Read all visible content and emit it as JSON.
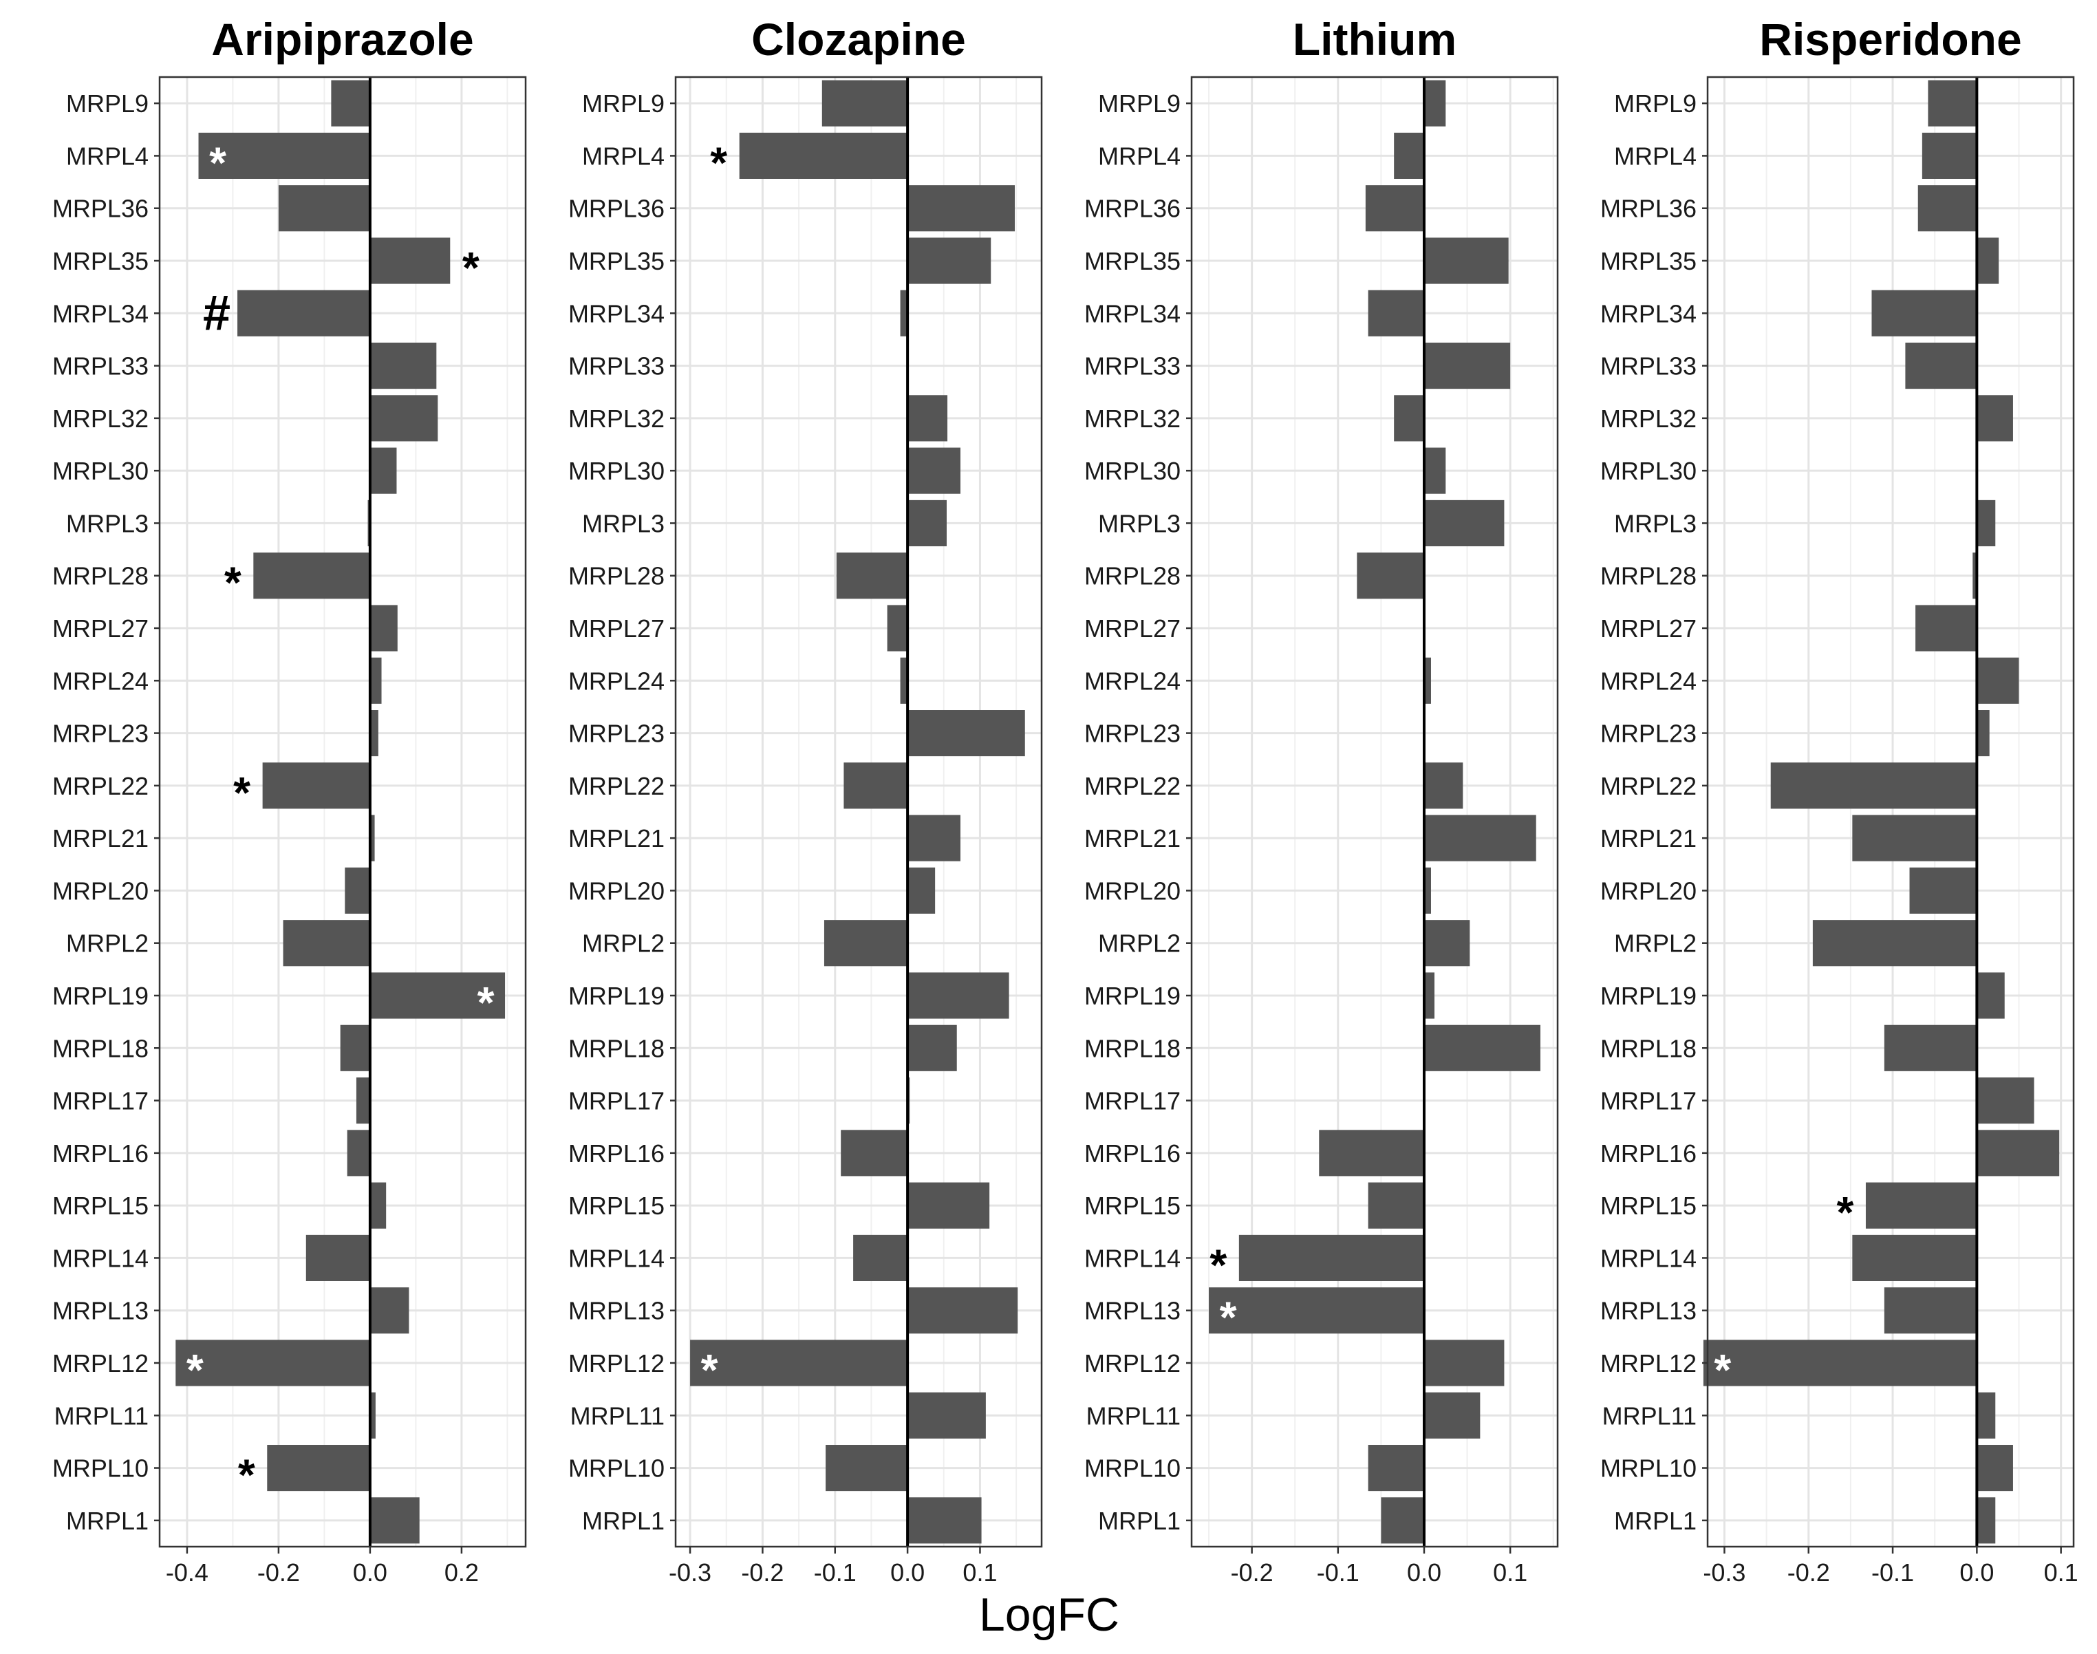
{
  "chart_data": {
    "type": "bar",
    "orientation": "horizontal",
    "xlabel": "LogFC",
    "categories": [
      "MRPL9",
      "MRPL4",
      "MRPL36",
      "MRPL35",
      "MRPL34",
      "MRPL33",
      "MRPL32",
      "MRPL30",
      "MRPL3",
      "MRPL28",
      "MRPL27",
      "MRPL24",
      "MRPL23",
      "MRPL22",
      "MRPL21",
      "MRPL20",
      "MRPL2",
      "MRPL19",
      "MRPL18",
      "MRPL17",
      "MRPL16",
      "MRPL15",
      "MRPL14",
      "MRPL13",
      "MRPL12",
      "MRPL11",
      "MRPL10",
      "MRPL1"
    ],
    "panels": [
      {
        "title": "Aripiprazole",
        "xlim": [
          -0.46,
          0.34
        ],
        "ticks": [
          -0.4,
          -0.2,
          0.0,
          0.2
        ],
        "tick_labels": [
          "-0.4",
          "-0.2",
          "0.0",
          "0.2"
        ],
        "values": [
          -0.085,
          -0.375,
          -0.2,
          0.175,
          -0.29,
          0.145,
          0.148,
          0.058,
          -0.005,
          -0.255,
          0.06,
          0.025,
          0.018,
          -0.235,
          0.01,
          -0.055,
          -0.19,
          0.295,
          -0.065,
          -0.03,
          -0.05,
          0.035,
          -0.14,
          0.085,
          -0.425,
          0.012,
          -0.225,
          0.108
        ],
        "marks": [
          {
            "category": "MRPL4",
            "symbol": "*",
            "color": "#ffffff",
            "placement": "inside"
          },
          {
            "category": "MRPL35",
            "symbol": "*",
            "color": "#000000",
            "placement": "outside"
          },
          {
            "category": "MRPL34",
            "symbol": "#",
            "color": "#000000",
            "placement": "outside"
          },
          {
            "category": "MRPL28",
            "symbol": "*",
            "color": "#000000",
            "placement": "outside"
          },
          {
            "category": "MRPL22",
            "symbol": "*",
            "color": "#000000",
            "placement": "outside"
          },
          {
            "category": "MRPL19",
            "symbol": "*",
            "color": "#ffffff",
            "placement": "inside"
          },
          {
            "category": "MRPL12",
            "symbol": "*",
            "color": "#ffffff",
            "placement": "inside"
          },
          {
            "category": "MRPL10",
            "symbol": "*",
            "color": "#000000",
            "placement": "outside"
          }
        ]
      },
      {
        "title": "Clozapine",
        "xlim": [
          -0.32,
          0.185
        ],
        "ticks": [
          -0.3,
          -0.2,
          -0.1,
          0.0,
          0.1
        ],
        "tick_labels": [
          "-0.3",
          "-0.2",
          "-0.1",
          "0.0",
          "0.1"
        ],
        "values": [
          -0.118,
          -0.232,
          0.148,
          0.115,
          -0.01,
          0.0,
          0.055,
          0.073,
          0.054,
          -0.098,
          -0.028,
          -0.01,
          0.162,
          -0.088,
          0.073,
          0.038,
          -0.115,
          0.14,
          0.068,
          0.003,
          -0.092,
          0.113,
          -0.075,
          0.152,
          -0.3,
          0.108,
          -0.113,
          0.102
        ],
        "marks": [
          {
            "category": "MRPL4",
            "symbol": "*",
            "color": "#000000",
            "placement": "outside"
          },
          {
            "category": "MRPL12",
            "symbol": "*",
            "color": "#ffffff",
            "placement": "inside"
          }
        ]
      },
      {
        "title": "Lithium",
        "xlim": [
          -0.27,
          0.155
        ],
        "ticks": [
          -0.2,
          -0.1,
          0.0,
          0.1
        ],
        "tick_labels": [
          "-0.2",
          "-0.1",
          "0.0",
          "0.1"
        ],
        "values": [
          0.025,
          -0.035,
          -0.068,
          0.098,
          -0.065,
          0.1,
          -0.035,
          0.025,
          0.093,
          -0.078,
          0.0,
          0.008,
          0.0,
          0.045,
          0.13,
          0.008,
          0.053,
          0.012,
          0.135,
          0.0,
          -0.122,
          -0.065,
          -0.215,
          -0.25,
          0.093,
          0.065,
          -0.065,
          -0.05
        ],
        "marks": [
          {
            "category": "MRPL14",
            "symbol": "*",
            "color": "#000000",
            "placement": "outside"
          },
          {
            "category": "MRPL13",
            "symbol": "*",
            "color": "#ffffff",
            "placement": "inside"
          }
        ]
      },
      {
        "title": "Risperidone",
        "xlim": [
          -0.32,
          0.115
        ],
        "ticks": [
          -0.3,
          -0.2,
          -0.1,
          0.0,
          0.1
        ],
        "tick_labels": [
          "-0.3",
          "-0.2",
          "-0.1",
          "0.0",
          "0.1"
        ],
        "values": [
          -0.058,
          -0.065,
          -0.07,
          0.026,
          -0.125,
          -0.085,
          0.043,
          0.0,
          0.022,
          -0.005,
          -0.073,
          0.05,
          0.015,
          -0.245,
          -0.148,
          -0.08,
          -0.195,
          0.033,
          -0.11,
          0.068,
          0.098,
          -0.132,
          -0.148,
          -0.11,
          -0.325,
          0.022,
          0.043,
          0.022
        ],
        "marks": [
          {
            "category": "MRPL15",
            "symbol": "*",
            "color": "#000000",
            "placement": "outside"
          },
          {
            "category": "MRPL12",
            "symbol": "*",
            "color": "#ffffff",
            "placement": "inside"
          }
        ]
      }
    ]
  }
}
